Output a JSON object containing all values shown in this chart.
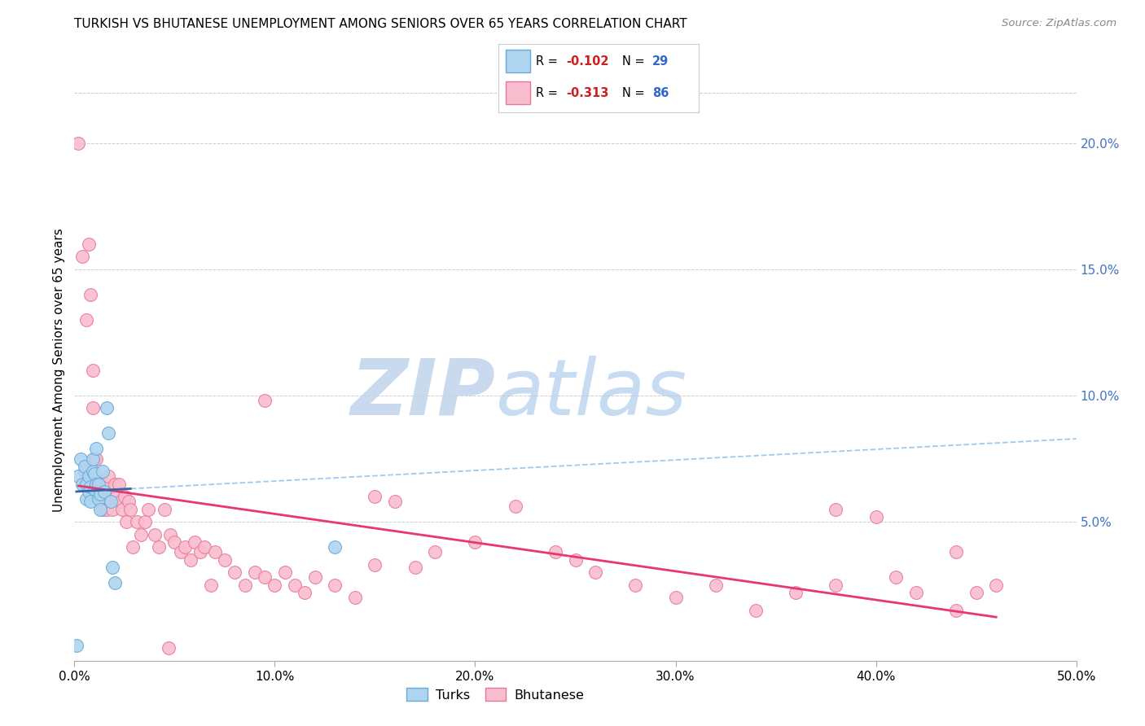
{
  "title": "TURKISH VS BHUTANESE UNEMPLOYMENT AMONG SENIORS OVER 65 YEARS CORRELATION CHART",
  "source": "Source: ZipAtlas.com",
  "ylabel": "Unemployment Among Seniors over 65 years",
  "xlim": [
    0.0,
    0.5
  ],
  "ylim": [
    -0.005,
    0.225
  ],
  "xticks": [
    0.0,
    0.1,
    0.2,
    0.3,
    0.4,
    0.5
  ],
  "xtick_labels": [
    "0.0%",
    "10.0%",
    "20.0%",
    "30.0%",
    "40.0%",
    "50.0%"
  ],
  "yticks_right": [
    0.05,
    0.1,
    0.15,
    0.2
  ],
  "ytick_labels_right": [
    "5.0%",
    "10.0%",
    "15.0%",
    "20.0%"
  ],
  "turks_color": "#aed4f0",
  "turks_edge_color": "#6aaad8",
  "bhutanese_color": "#f9bdd0",
  "bhutanese_edge_color": "#e87898",
  "turks_line_color": "#3465a8",
  "bhutanese_line_color": "#e83870",
  "turks_dash_color": "#90c0e8",
  "watermark_zip_color": "#c8d8ec",
  "watermark_atlas_color": "#b8d4f0",
  "turks_x": [
    0.001,
    0.002,
    0.003,
    0.004,
    0.005,
    0.006,
    0.006,
    0.007,
    0.007,
    0.008,
    0.008,
    0.009,
    0.009,
    0.01,
    0.01,
    0.011,
    0.011,
    0.012,
    0.012,
    0.013,
    0.013,
    0.014,
    0.015,
    0.016,
    0.017,
    0.018,
    0.019,
    0.02,
    0.13
  ],
  "turks_y": [
    0.001,
    0.068,
    0.075,
    0.065,
    0.072,
    0.059,
    0.065,
    0.062,
    0.068,
    0.058,
    0.064,
    0.07,
    0.075,
    0.063,
    0.069,
    0.065,
    0.079,
    0.059,
    0.065,
    0.055,
    0.061,
    0.07,
    0.062,
    0.095,
    0.085,
    0.058,
    0.032,
    0.026,
    0.04
  ],
  "bhutanese_x": [
    0.002,
    0.004,
    0.006,
    0.007,
    0.008,
    0.009,
    0.009,
    0.01,
    0.011,
    0.011,
    0.012,
    0.013,
    0.013,
    0.014,
    0.015,
    0.015,
    0.016,
    0.017,
    0.018,
    0.019,
    0.02,
    0.021,
    0.022,
    0.023,
    0.024,
    0.025,
    0.026,
    0.027,
    0.028,
    0.029,
    0.031,
    0.033,
    0.035,
    0.037,
    0.04,
    0.042,
    0.045,
    0.048,
    0.05,
    0.053,
    0.055,
    0.058,
    0.06,
    0.063,
    0.065,
    0.068,
    0.07,
    0.075,
    0.08,
    0.085,
    0.09,
    0.095,
    0.1,
    0.105,
    0.11,
    0.115,
    0.12,
    0.13,
    0.14,
    0.15,
    0.16,
    0.17,
    0.18,
    0.2,
    0.22,
    0.24,
    0.26,
    0.28,
    0.3,
    0.32,
    0.34,
    0.36,
    0.38,
    0.4,
    0.41,
    0.42,
    0.44,
    0.45,
    0.46,
    0.047,
    0.095,
    0.25,
    0.005,
    0.15,
    0.38,
    0.44
  ],
  "bhutanese_y": [
    0.2,
    0.155,
    0.13,
    0.16,
    0.14,
    0.095,
    0.11,
    0.075,
    0.065,
    0.075,
    0.065,
    0.058,
    0.065,
    0.055,
    0.06,
    0.065,
    0.055,
    0.068,
    0.058,
    0.055,
    0.065,
    0.06,
    0.065,
    0.058,
    0.055,
    0.06,
    0.05,
    0.058,
    0.055,
    0.04,
    0.05,
    0.045,
    0.05,
    0.055,
    0.045,
    0.04,
    0.055,
    0.045,
    0.042,
    0.038,
    0.04,
    0.035,
    0.042,
    0.038,
    0.04,
    0.025,
    0.038,
    0.035,
    0.03,
    0.025,
    0.03,
    0.028,
    0.025,
    0.03,
    0.025,
    0.022,
    0.028,
    0.025,
    0.02,
    0.033,
    0.058,
    0.032,
    0.038,
    0.042,
    0.056,
    0.038,
    0.03,
    0.025,
    0.02,
    0.025,
    0.015,
    0.022,
    0.055,
    0.052,
    0.028,
    0.022,
    0.015,
    0.022,
    0.025,
    0.0,
    0.098,
    0.035,
    0.07,
    0.06,
    0.025,
    0.038
  ]
}
